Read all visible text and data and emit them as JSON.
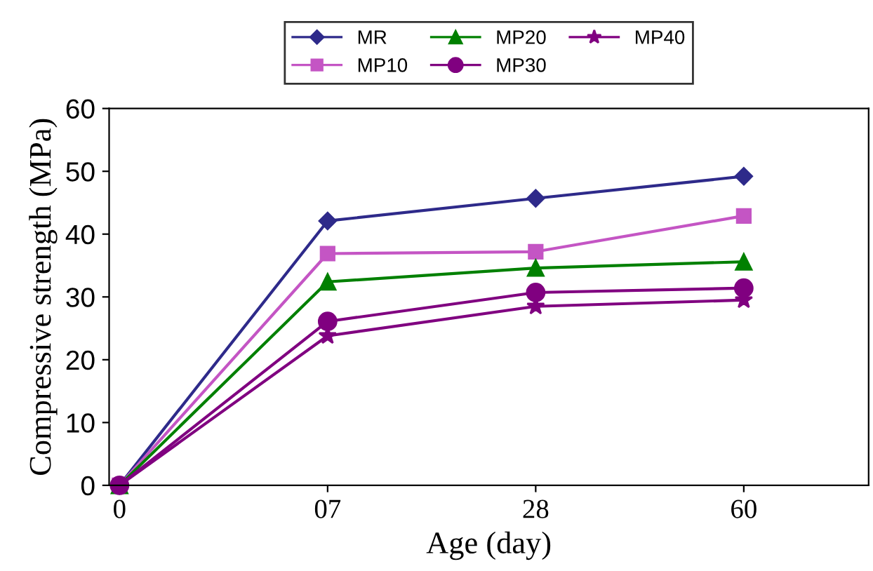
{
  "chart_data": {
    "type": "line",
    "xlabel": "Age (day)",
    "ylabel": "Compressive strength (MPa)",
    "categories": [
      "0",
      "07",
      "28",
      "60"
    ],
    "ylim": [
      0,
      60
    ],
    "yticks": [
      0,
      10,
      20,
      30,
      40,
      50,
      60
    ],
    "grid": false,
    "legend": "top",
    "series": [
      {
        "name": "MR",
        "color": "#2e2a8a",
        "marker": "diamond",
        "values": [
          0,
          42.1,
          45.7,
          49.2
        ]
      },
      {
        "name": "MP10",
        "color": "#c455c4",
        "marker": "square",
        "values": [
          0,
          36.9,
          37.2,
          42.9
        ]
      },
      {
        "name": "MP20",
        "color": "#008000",
        "marker": "triangle",
        "values": [
          0,
          32.4,
          34.6,
          35.6
        ]
      },
      {
        "name": "MP30",
        "color": "#800080",
        "marker": "circle",
        "values": [
          0,
          26.1,
          30.7,
          31.4
        ]
      },
      {
        "name": "MP40",
        "color": "#800080",
        "marker": "star",
        "values": [
          0,
          23.8,
          28.5,
          29.5
        ]
      }
    ]
  }
}
